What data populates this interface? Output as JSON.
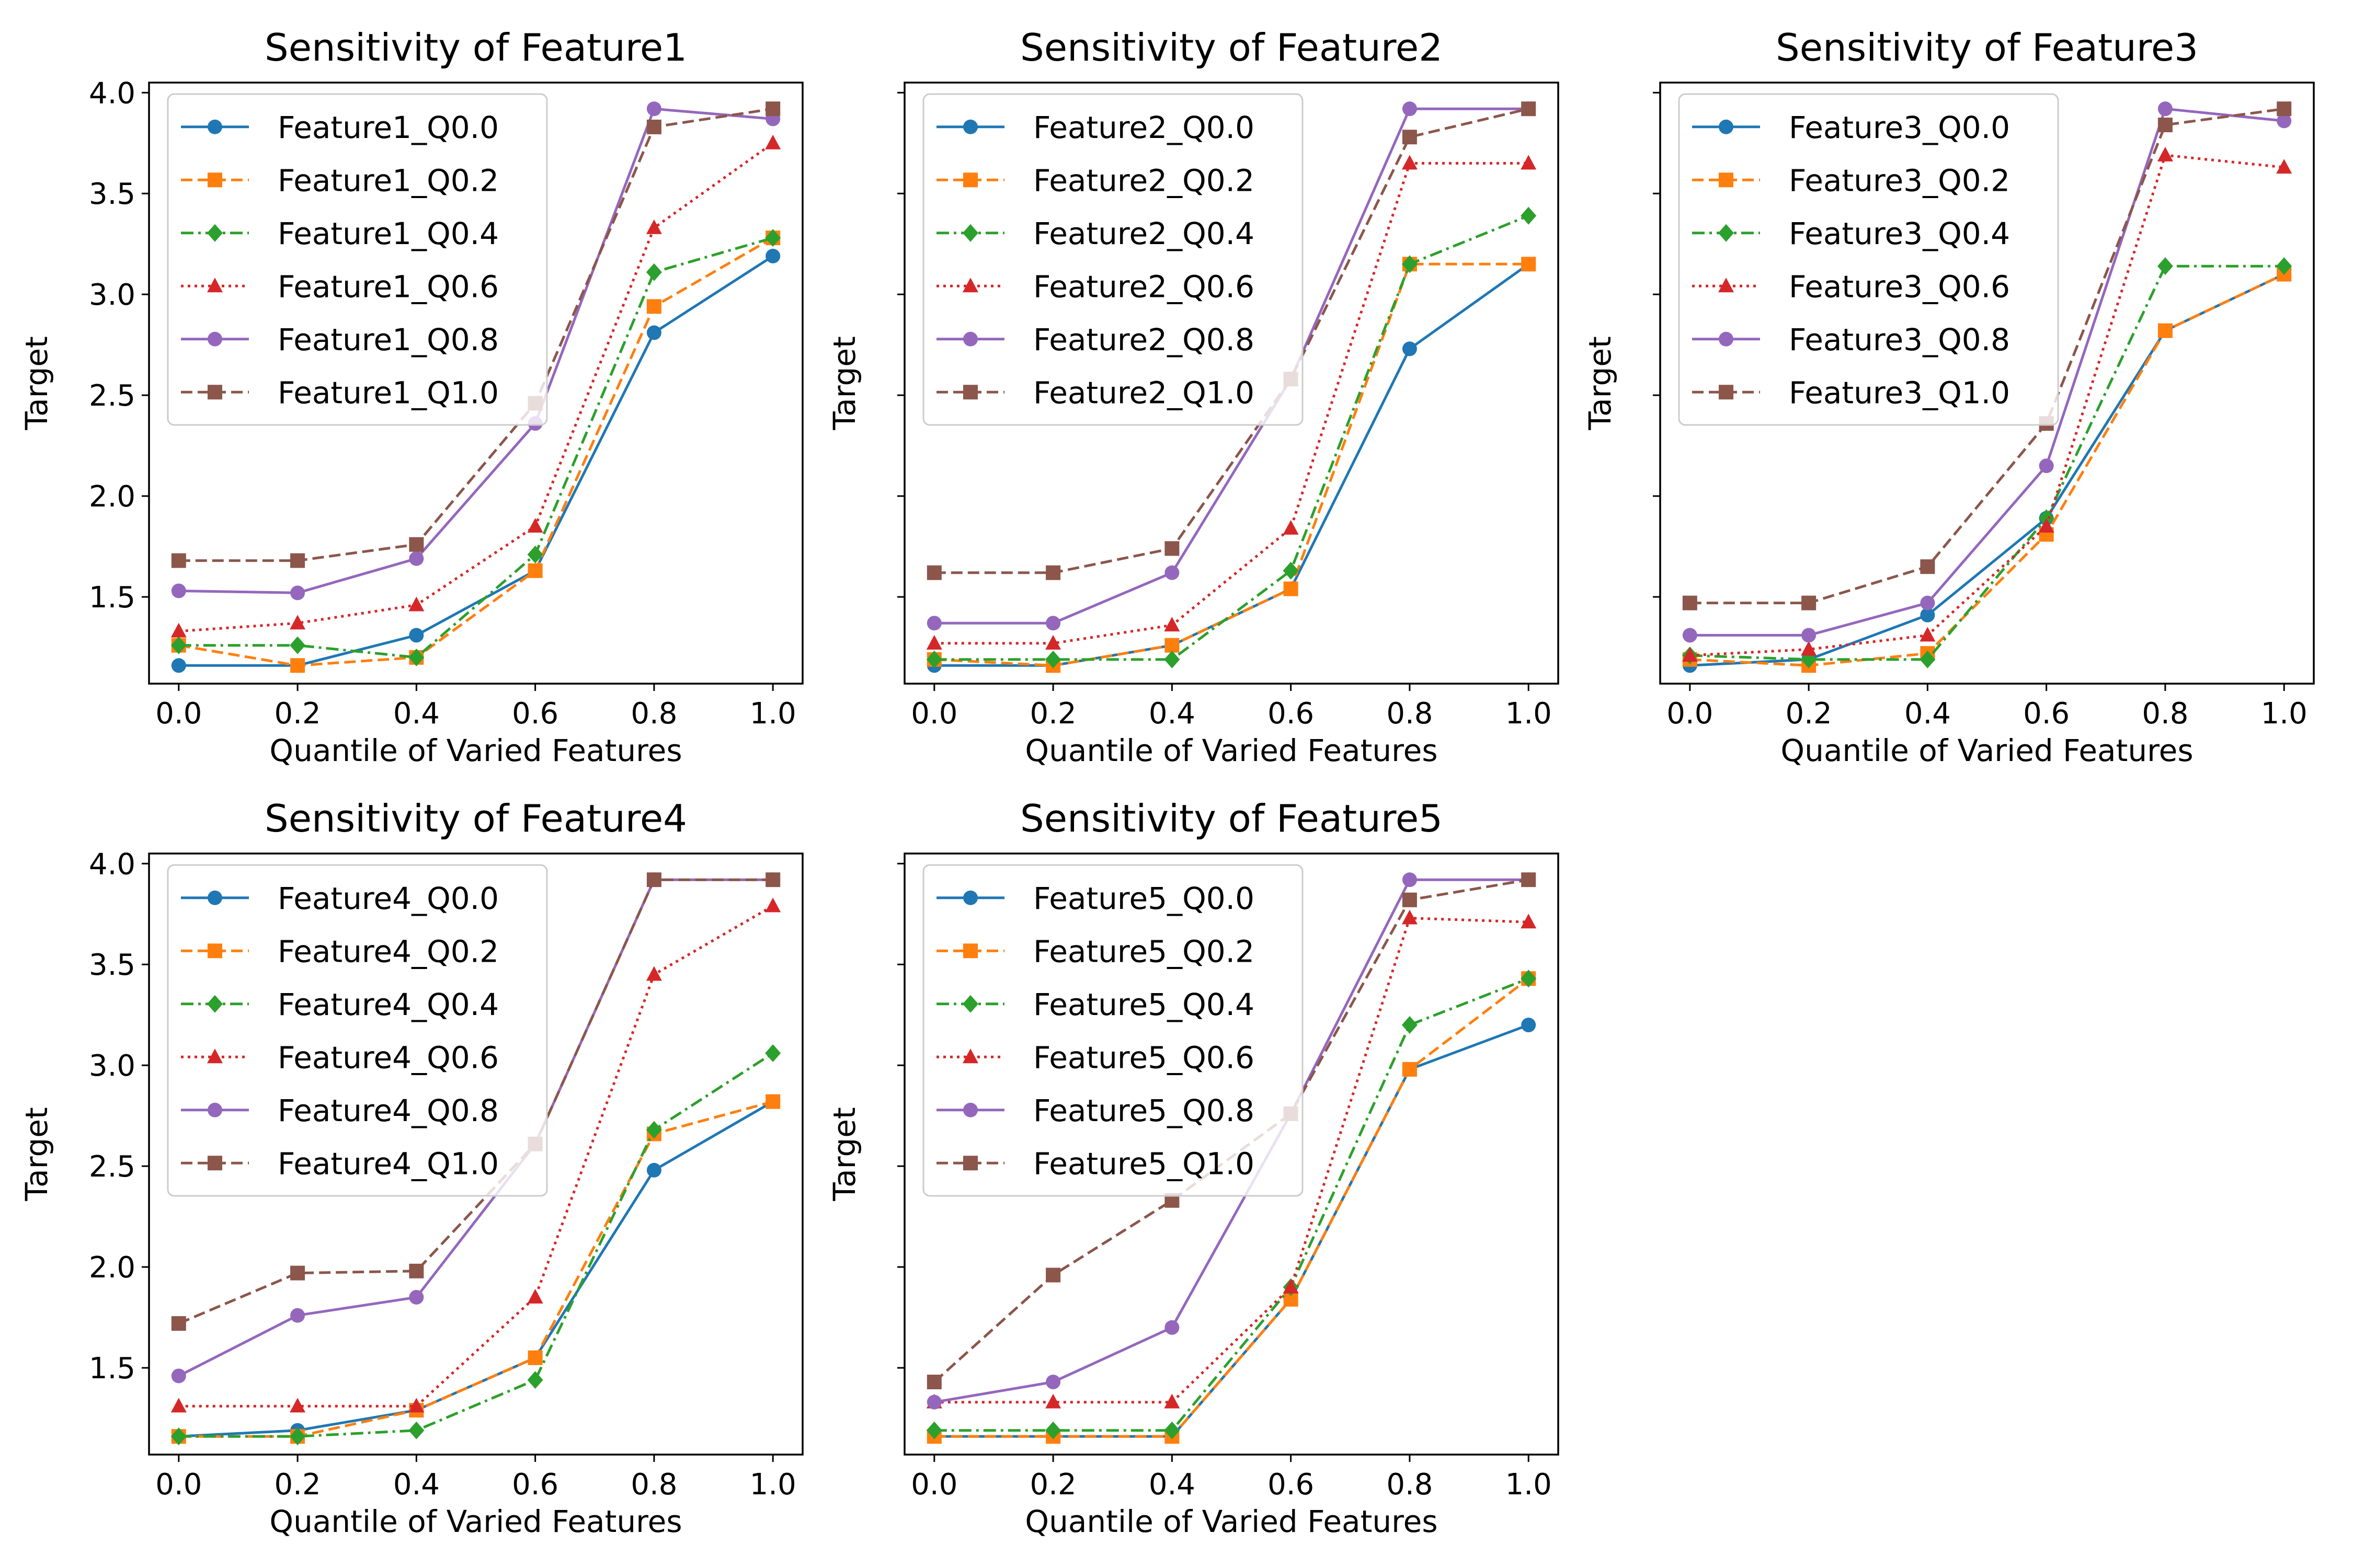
{
  "figure": {
    "background": "#ffffff"
  },
  "style": {
    "series": [
      {
        "quantile": "Q0.0",
        "color": "#1f77b4",
        "dash": "solid",
        "marker": "circle"
      },
      {
        "quantile": "Q0.2",
        "color": "#ff7f0e",
        "dash": "dashed",
        "marker": "square"
      },
      {
        "quantile": "Q0.4",
        "color": "#2ca02c",
        "dash": "dashdot",
        "marker": "diamond"
      },
      {
        "quantile": "Q0.6",
        "color": "#d62728",
        "dash": "dotted",
        "marker": "triangle"
      },
      {
        "quantile": "Q0.8",
        "color": "#9467bd",
        "dash": "solid",
        "marker": "circle"
      },
      {
        "quantile": "Q1.0",
        "color": "#8c564b",
        "dash": "dashed",
        "marker": "square"
      }
    ]
  },
  "chart_data": [
    {
      "type": "line",
      "title": "Sensitivity of Feature1",
      "xlabel": "Quantile of Varied Features",
      "ylabel": "Target",
      "show_y_ticklabels": true,
      "x": [
        0.0,
        0.2,
        0.4,
        0.6,
        0.8,
        1.0
      ],
      "xticks": [
        "0.0",
        "0.2",
        "0.4",
        "0.6",
        "0.8",
        "1.0"
      ],
      "yticks": [
        "1.5",
        "2.0",
        "2.5",
        "3.0",
        "3.5",
        "4.0"
      ],
      "ylim": [
        1.07,
        4.05
      ],
      "xlim": [
        -0.05,
        1.05
      ],
      "legend": "upper-left",
      "series": [
        {
          "name": "Feature1_Q0.0",
          "values": [
            1.16,
            1.16,
            1.31,
            1.63,
            2.81,
            3.19
          ]
        },
        {
          "name": "Feature1_Q0.2",
          "values": [
            1.26,
            1.16,
            1.2,
            1.63,
            2.94,
            3.28
          ]
        },
        {
          "name": "Feature1_Q0.4",
          "values": [
            1.26,
            1.26,
            1.2,
            1.71,
            3.11,
            3.28
          ]
        },
        {
          "name": "Feature1_Q0.6",
          "values": [
            1.33,
            1.37,
            1.46,
            1.85,
            3.33,
            3.75
          ]
        },
        {
          "name": "Feature1_Q0.8",
          "values": [
            1.53,
            1.52,
            1.69,
            2.36,
            3.92,
            3.87
          ]
        },
        {
          "name": "Feature1_Q1.0",
          "values": [
            1.68,
            1.68,
            1.76,
            2.46,
            3.83,
            3.92
          ]
        }
      ]
    },
    {
      "type": "line",
      "title": "Sensitivity of Feature2",
      "xlabel": "Quantile of Varied Features",
      "ylabel": "Target",
      "show_y_ticklabels": false,
      "x": [
        0.0,
        0.2,
        0.4,
        0.6,
        0.8,
        1.0
      ],
      "xticks": [
        "0.0",
        "0.2",
        "0.4",
        "0.6",
        "0.8",
        "1.0"
      ],
      "yticks": [
        "1.5",
        "2.0",
        "2.5",
        "3.0",
        "3.5",
        "4.0"
      ],
      "ylim": [
        1.07,
        4.05
      ],
      "xlim": [
        -0.05,
        1.05
      ],
      "legend": "upper-left",
      "series": [
        {
          "name": "Feature2_Q0.0",
          "values": [
            1.16,
            1.16,
            1.26,
            1.54,
            2.73,
            3.15
          ]
        },
        {
          "name": "Feature2_Q0.2",
          "values": [
            1.19,
            1.16,
            1.26,
            1.54,
            3.15,
            3.15
          ]
        },
        {
          "name": "Feature2_Q0.4",
          "values": [
            1.19,
            1.19,
            1.19,
            1.63,
            3.15,
            3.39
          ]
        },
        {
          "name": "Feature2_Q0.6",
          "values": [
            1.27,
            1.27,
            1.36,
            1.84,
            3.65,
            3.65
          ]
        },
        {
          "name": "Feature2_Q0.8",
          "values": [
            1.37,
            1.37,
            1.62,
            2.58,
            3.92,
            3.92
          ]
        },
        {
          "name": "Feature2_Q1.0",
          "values": [
            1.62,
            1.62,
            1.74,
            2.58,
            3.78,
            3.92
          ]
        }
      ]
    },
    {
      "type": "line",
      "title": "Sensitivity of Feature3",
      "xlabel": "Quantile of Varied Features",
      "ylabel": "Target",
      "show_y_ticklabels": false,
      "x": [
        0.0,
        0.2,
        0.4,
        0.6,
        0.8,
        1.0
      ],
      "xticks": [
        "0.0",
        "0.2",
        "0.4",
        "0.6",
        "0.8",
        "1.0"
      ],
      "yticks": [
        "1.5",
        "2.0",
        "2.5",
        "3.0",
        "3.5",
        "4.0"
      ],
      "ylim": [
        1.07,
        4.05
      ],
      "xlim": [
        -0.05,
        1.05
      ],
      "legend": "upper-left",
      "series": [
        {
          "name": "Feature3_Q0.0",
          "values": [
            1.16,
            1.19,
            1.41,
            1.89,
            2.82,
            3.1
          ]
        },
        {
          "name": "Feature3_Q0.2",
          "values": [
            1.19,
            1.16,
            1.22,
            1.81,
            2.82,
            3.1
          ]
        },
        {
          "name": "Feature3_Q0.4",
          "values": [
            1.21,
            1.19,
            1.19,
            1.89,
            3.14,
            3.14
          ]
        },
        {
          "name": "Feature3_Q0.6",
          "values": [
            1.21,
            1.24,
            1.31,
            1.85,
            3.69,
            3.63
          ]
        },
        {
          "name": "Feature3_Q0.8",
          "values": [
            1.31,
            1.31,
            1.47,
            2.15,
            3.92,
            3.86
          ]
        },
        {
          "name": "Feature3_Q1.0",
          "values": [
            1.47,
            1.47,
            1.65,
            2.36,
            3.84,
            3.92
          ]
        }
      ]
    },
    {
      "type": "line",
      "title": "Sensitivity of Feature4",
      "xlabel": "Quantile of Varied Features",
      "ylabel": "Target",
      "show_y_ticklabels": true,
      "x": [
        0.0,
        0.2,
        0.4,
        0.6,
        0.8,
        1.0
      ],
      "xticks": [
        "0.0",
        "0.2",
        "0.4",
        "0.6",
        "0.8",
        "1.0"
      ],
      "yticks": [
        "1.5",
        "2.0",
        "2.5",
        "3.0",
        "3.5",
        "4.0"
      ],
      "ylim": [
        1.07,
        4.05
      ],
      "xlim": [
        -0.05,
        1.05
      ],
      "legend": "upper-left",
      "series": [
        {
          "name": "Feature4_Q0.0",
          "values": [
            1.16,
            1.19,
            1.29,
            1.55,
            2.48,
            2.82
          ]
        },
        {
          "name": "Feature4_Q0.2",
          "values": [
            1.16,
            1.16,
            1.29,
            1.55,
            2.66,
            2.82
          ]
        },
        {
          "name": "Feature4_Q0.4",
          "values": [
            1.16,
            1.16,
            1.19,
            1.44,
            2.68,
            3.06
          ]
        },
        {
          "name": "Feature4_Q0.6",
          "values": [
            1.31,
            1.31,
            1.31,
            1.85,
            3.45,
            3.79
          ]
        },
        {
          "name": "Feature4_Q0.8",
          "values": [
            1.46,
            1.76,
            1.85,
            2.61,
            3.92,
            3.92
          ]
        },
        {
          "name": "Feature4_Q1.0",
          "values": [
            1.72,
            1.97,
            1.98,
            2.61,
            3.92,
            3.92
          ]
        }
      ]
    },
    {
      "type": "line",
      "title": "Sensitivity of Feature5",
      "xlabel": "Quantile of Varied Features",
      "ylabel": "Target",
      "show_y_ticklabels": false,
      "x": [
        0.0,
        0.2,
        0.4,
        0.6,
        0.8,
        1.0
      ],
      "xticks": [
        "0.0",
        "0.2",
        "0.4",
        "0.6",
        "0.8",
        "1.0"
      ],
      "yticks": [
        "1.5",
        "2.0",
        "2.5",
        "3.0",
        "3.5",
        "4.0"
      ],
      "ylim": [
        1.07,
        4.05
      ],
      "xlim": [
        -0.05,
        1.05
      ],
      "legend": "upper-left",
      "series": [
        {
          "name": "Feature5_Q0.0",
          "values": [
            1.16,
            1.16,
            1.16,
            1.84,
            2.98,
            3.2
          ]
        },
        {
          "name": "Feature5_Q0.2",
          "values": [
            1.16,
            1.16,
            1.16,
            1.84,
            2.98,
            3.43
          ]
        },
        {
          "name": "Feature5_Q0.4",
          "values": [
            1.19,
            1.19,
            1.19,
            1.9,
            3.2,
            3.43
          ]
        },
        {
          "name": "Feature5_Q0.6",
          "values": [
            1.33,
            1.33,
            1.33,
            1.9,
            3.73,
            3.71
          ]
        },
        {
          "name": "Feature5_Q0.8",
          "values": [
            1.33,
            1.43,
            1.7,
            2.76,
            3.92,
            3.92
          ]
        },
        {
          "name": "Feature5_Q1.0",
          "values": [
            1.43,
            1.96,
            2.33,
            2.76,
            3.82,
            3.92
          ]
        }
      ]
    }
  ]
}
